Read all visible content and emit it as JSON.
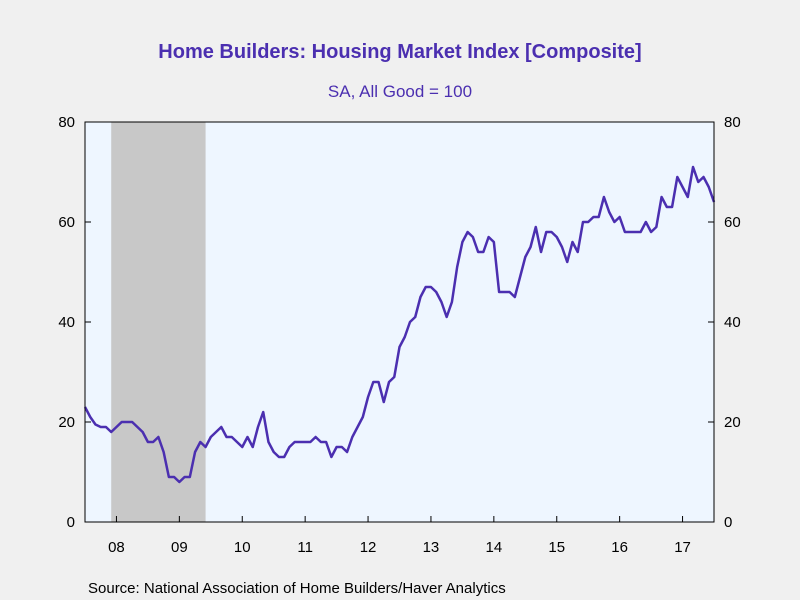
{
  "chart_data": {
    "type": "line",
    "title": "Home Builders: Housing Market Index [Composite]",
    "subtitle": "SA, All Good = 100",
    "source": "Source:  National Association of Home Builders/Haver Analytics",
    "ylim": [
      0,
      80
    ],
    "yticks": [
      0,
      20,
      40,
      60,
      80
    ],
    "x_start": 2007.5,
    "x_end": 2017.5,
    "x_tick_labels": [
      "08",
      "09",
      "10",
      "11",
      "12",
      "13",
      "14",
      "15",
      "16",
      "17"
    ],
    "x_tick_years": [
      2008,
      2009,
      2010,
      2011,
      2012,
      2013,
      2014,
      2015,
      2016,
      2017
    ],
    "recession": {
      "start": 2007.917,
      "end": 2009.417,
      "color": "#c8c8c8"
    },
    "colors": {
      "line": "#4b2fb0",
      "title": "#4b2fb0",
      "plot_bg": "#eef6ff",
      "page_bg": "#f0f0f0"
    },
    "series": [
      {
        "start": "2007-07",
        "frequency": "monthly",
        "values": [
          23,
          21,
          19.5,
          19,
          19,
          18,
          19,
          20,
          20,
          20,
          19,
          18,
          16,
          16,
          17,
          14,
          9,
          9,
          8,
          9,
          9,
          14,
          16,
          15,
          17,
          18,
          19,
          17,
          17,
          16,
          15,
          17,
          15,
          19,
          22,
          16,
          14,
          13,
          13,
          15,
          16,
          16,
          16,
          16,
          17,
          16,
          16,
          13,
          15,
          15,
          14,
          17,
          19,
          21,
          25,
          28,
          28,
          24,
          28,
          29,
          35,
          37,
          40,
          41,
          45,
          47,
          47,
          46,
          44,
          41,
          44,
          51,
          56,
          58,
          57,
          54,
          54,
          57,
          56,
          46,
          46,
          46,
          45,
          49,
          53,
          55,
          59,
          54,
          58,
          58,
          57,
          55,
          52,
          56,
          54,
          60,
          60,
          61,
          61,
          65,
          62,
          60,
          61,
          58,
          58,
          58,
          58,
          60,
          58,
          59,
          65,
          63,
          63,
          69,
          67,
          65,
          71,
          68,
          69,
          67,
          64
        ]
      }
    ]
  }
}
